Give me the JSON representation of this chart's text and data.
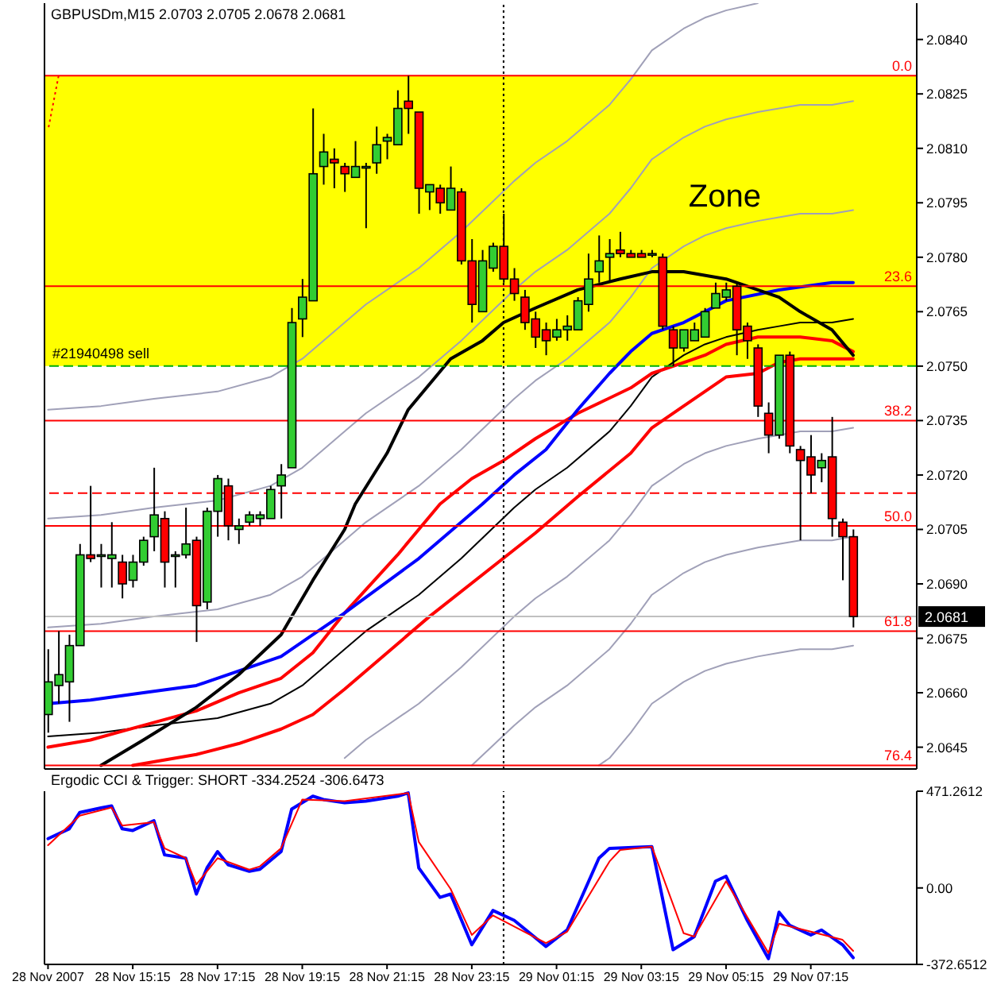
{
  "chart_data": [
    {
      "type": "candlestick",
      "title": "GBPUSDm,M15 2.0703 2.0705 2.0678 2.0681",
      "color": "#000000",
      "x": [
        "2007-11-28T13:15",
        "2007-11-28T13:30",
        "2007-11-28T13:45",
        "2007-11-28T14:00",
        "2007-11-28T14:15",
        "2007-11-28T14:30",
        "2007-11-28T14:45",
        "2007-11-28T15:00",
        "2007-11-28T15:15",
        "2007-11-28T15:30",
        "2007-11-28T15:45",
        "2007-11-28T16:00",
        "2007-11-28T16:15",
        "2007-11-28T16:30",
        "2007-11-28T16:45",
        "2007-11-28T17:00",
        "2007-11-28T17:15",
        "2007-11-28T17:30",
        "2007-11-28T17:45",
        "2007-11-28T18:00",
        "2007-11-28T18:15",
        "2007-11-28T18:30",
        "2007-11-28T18:45",
        "2007-11-28T19:00",
        "2007-11-28T19:15",
        "2007-11-28T19:30",
        "2007-11-28T19:45",
        "2007-11-28T20:00",
        "2007-11-28T20:15",
        "2007-11-28T20:30",
        "2007-11-28T20:45",
        "2007-11-28T21:00",
        "2007-11-28T21:15",
        "2007-11-28T21:30",
        "2007-11-28T21:45",
        "2007-11-28T22:00",
        "2007-11-28T22:15",
        "2007-11-28T22:30",
        "2007-11-28T22:45",
        "2007-11-28T23:00",
        "2007-11-28T23:15",
        "2007-11-28T23:30",
        "2007-11-28T23:45",
        "2007-11-29T00:00",
        "2007-11-29T00:15",
        "2007-11-29T00:30",
        "2007-11-29T00:45",
        "2007-11-29T01:00",
        "2007-11-29T01:15",
        "2007-11-29T01:30",
        "2007-11-29T01:45",
        "2007-11-29T02:00",
        "2007-11-29T02:15",
        "2007-11-29T02:30",
        "2007-11-29T02:45",
        "2007-11-29T03:00",
        "2007-11-29T03:15",
        "2007-11-29T03:30",
        "2007-11-29T03:45",
        "2007-11-29T04:00",
        "2007-11-29T04:15",
        "2007-11-29T04:30",
        "2007-11-29T04:45",
        "2007-11-29T05:00",
        "2007-11-29T05:15",
        "2007-11-29T05:30",
        "2007-11-29T05:45",
        "2007-11-29T06:00",
        "2007-11-29T06:15",
        "2007-11-29T06:30",
        "2007-11-29T06:45",
        "2007-11-29T07:00",
        "2007-11-29T07:15",
        "2007-11-29T07:30",
        "2007-11-29T07:45",
        "2007-11-29T08:00",
        "2007-11-29T08:15"
      ],
      "ohlc": [
        [
          2.0654,
          2.0672,
          2.0649,
          2.0663
        ],
        [
          2.0662,
          2.0677,
          2.0657,
          2.0665
        ],
        [
          2.0663,
          2.0676,
          2.0652,
          2.0673
        ],
        [
          2.0673,
          2.0701,
          2.0673,
          2.0698
        ],
        [
          2.0698,
          2.0717,
          2.0696,
          2.0697
        ],
        [
          2.0698,
          2.0701,
          2.0689,
          2.0698
        ],
        [
          2.0697,
          2.0707,
          2.0689,
          2.0698
        ],
        [
          2.0696,
          2.0698,
          2.0686,
          2.069
        ],
        [
          2.0691,
          2.0698,
          2.0689,
          2.0696
        ],
        [
          2.0696,
          2.0703,
          2.0695,
          2.0702
        ],
        [
          2.0703,
          2.0722,
          2.0699,
          2.0709
        ],
        [
          2.0708,
          2.071,
          2.0689,
          2.0696
        ],
        [
          2.0698,
          2.0699,
          2.0689,
          2.0698
        ],
        [
          2.0698,
          2.0711,
          2.0697,
          2.0701
        ],
        [
          2.0702,
          2.0703,
          2.0674,
          2.0684
        ],
        [
          2.0685,
          2.0711,
          2.0683,
          2.071
        ],
        [
          2.071,
          2.072,
          2.0703,
          2.0719
        ],
        [
          2.0717,
          2.0719,
          2.0702,
          2.0706
        ],
        [
          2.0705,
          2.0708,
          2.0701,
          2.0706
        ],
        [
          2.0707,
          2.071,
          2.0706,
          2.0709
        ],
        [
          2.0708,
          2.071,
          2.0706,
          2.0709
        ],
        [
          2.0708,
          2.0717,
          2.0708,
          2.0716
        ],
        [
          2.0717,
          2.0723,
          2.0708,
          2.072
        ],
        [
          2.0722,
          2.0766,
          2.0722,
          2.0762
        ],
        [
          2.0763,
          2.0774,
          2.0758,
          2.0769
        ],
        [
          2.0768,
          2.0821,
          2.0768,
          2.0803
        ],
        [
          2.0805,
          2.0814,
          2.08,
          2.0809
        ],
        [
          2.0807,
          2.081,
          2.0799,
          2.0806
        ],
        [
          2.0805,
          2.0806,
          2.0798,
          2.0803
        ],
        [
          2.0802,
          2.0812,
          2.0802,
          2.0805
        ],
        [
          2.0805,
          2.0806,
          2.0788,
          2.0805
        ],
        [
          2.0806,
          2.0816,
          2.0803,
          2.0811
        ],
        [
          2.0812,
          2.0814,
          2.0807,
          2.0813
        ],
        [
          2.0811,
          2.0826,
          2.0811,
          2.0821
        ],
        [
          2.0823,
          2.083,
          2.0814,
          2.0821
        ],
        [
          2.082,
          2.082,
          2.0792,
          2.0799
        ],
        [
          2.0798,
          2.08,
          2.0793,
          2.08
        ],
        [
          2.0799,
          2.08,
          2.0792,
          2.0795
        ],
        [
          2.0793,
          2.0805,
          2.0793,
          2.0799
        ],
        [
          2.0798,
          2.0799,
          2.0778,
          2.0779
        ],
        [
          2.0779,
          2.0785,
          2.0762,
          2.0767
        ],
        [
          2.0765,
          2.0782,
          2.0765,
          2.0779
        ],
        [
          2.0777,
          2.0784,
          2.0776,
          2.0783
        ],
        [
          2.0783,
          2.0792,
          2.0773,
          2.0774
        ],
        [
          2.0774,
          2.0777,
          2.0768,
          2.077
        ],
        [
          2.0769,
          2.0771,
          2.076,
          2.0762
        ],
        [
          2.0763,
          2.0765,
          2.0755,
          2.0758
        ],
        [
          2.076,
          2.0762,
          2.0753,
          2.0757
        ],
        [
          2.0758,
          2.0763,
          2.0757,
          2.076
        ],
        [
          2.076,
          2.0764,
          2.0757,
          2.0761
        ],
        [
          2.076,
          2.0769,
          2.076,
          2.0768
        ],
        [
          2.0767,
          2.0781,
          2.0765,
          2.0774
        ],
        [
          2.0776,
          2.0786,
          2.0773,
          2.0779
        ],
        [
          2.078,
          2.0785,
          2.0773,
          2.0781
        ],
        [
          2.0782,
          2.0787,
          2.078,
          2.0781
        ],
        [
          2.0781,
          2.0782,
          2.078,
          2.078
        ],
        [
          2.0781,
          2.0782,
          2.078,
          2.078
        ],
        [
          2.0781,
          2.0782,
          2.078,
          2.0781
        ],
        [
          2.078,
          2.0781,
          2.076,
          2.0761
        ],
        [
          2.076,
          2.0761,
          2.075,
          2.0755
        ],
        [
          2.0755,
          2.076,
          2.0754,
          2.076
        ],
        [
          2.0757,
          2.0762,
          2.0757,
          2.076
        ],
        [
          2.0758,
          2.0766,
          2.0758,
          2.0765
        ],
        [
          2.0766,
          2.0773,
          2.0766,
          2.077
        ],
        [
          2.0769,
          2.0773,
          2.0768,
          2.0771
        ],
        [
          2.0772,
          2.0773,
          2.0753,
          2.076
        ],
        [
          2.0761,
          2.0762,
          2.0752,
          2.0757
        ],
        [
          2.0755,
          2.0756,
          2.0736,
          2.0739
        ],
        [
          2.0737,
          2.074,
          2.0726,
          2.0731
        ],
        [
          2.0731,
          2.0753,
          2.073,
          2.0753
        ],
        [
          2.0753,
          2.0754,
          2.0726,
          2.0728
        ],
        [
          2.0727,
          2.0728,
          2.0702,
          2.0724
        ],
        [
          2.0725,
          2.0731,
          2.0715,
          2.072
        ],
        [
          2.0722,
          2.0726,
          2.0718,
          2.0724
        ],
        [
          2.0725,
          2.0736,
          2.0703,
          2.0708
        ],
        [
          2.0707,
          2.0708,
          2.0691,
          2.0703
        ],
        [
          2.0703,
          2.0705,
          2.0678,
          2.0681
        ]
      ],
      "colors": [
        "#32cd32",
        "#32cd32",
        "#32cd32",
        "#32cd32",
        "#ff0000",
        "#32cd32",
        "#32cd32",
        "#ff0000",
        "#32cd32",
        "#32cd32",
        "#32cd32",
        "#ff0000",
        "#32cd32",
        "#32cd32",
        "#ff0000",
        "#32cd32",
        "#32cd32",
        "#ff0000",
        "#32cd32",
        "#32cd32",
        "#32cd32",
        "#32cd32",
        "#32cd32",
        "#32cd32",
        "#32cd32",
        "#32cd32",
        "#32cd32",
        "#ff0000",
        "#ff0000",
        "#32cd32",
        "#32cd32",
        "#32cd32",
        "#32cd32",
        "#32cd32",
        "#ff0000",
        "#ff0000",
        "#32cd32",
        "#ff0000",
        "#32cd32",
        "#ff0000",
        "#ff0000",
        "#32cd32",
        "#32cd32",
        "#ff0000",
        "#ff0000",
        "#ff0000",
        "#ff0000",
        "#ff0000",
        "#32cd32",
        "#32cd32",
        "#32cd32",
        "#32cd32",
        "#32cd32",
        "#32cd32",
        "#ff0000",
        "#ff0000",
        "#ff0000",
        "#32cd32",
        "#ff0000",
        "#ff0000",
        "#32cd32",
        "#32cd32",
        "#32cd32",
        "#32cd32",
        "#32cd32",
        "#ff0000",
        "#ff0000",
        "#ff0000",
        "#ff0000",
        "#32cd32",
        "#ff0000",
        "#ff0000",
        "#ff0000",
        "#32cd32",
        "#ff0000",
        "#ff0000",
        "#ff0000"
      ],
      "series": [
        {
          "type": "line",
          "color": "#a0a0b8",
          "x": [
            "2007-11-28T13:15",
            "2007-11-28T14:30",
            "2007-11-28T15:45",
            "2007-11-28T17:15",
            "2007-11-28T18:30",
            "2007-11-28T19:15",
            "2007-11-28T20:15",
            "2007-11-28T20:45",
            "2007-11-28T22:00",
            "2007-11-28T23:00",
            "2007-11-29T00:15",
            "2007-11-29T00:45",
            "2007-11-29T01:30",
            "2007-11-29T02:30",
            "2007-11-29T03:00",
            "2007-11-29T03:30",
            "2007-11-29T04:15",
            "2007-11-29T04:45",
            "2007-11-29T05:15",
            "2007-11-29T06:00"
          ],
          "values": [
            2.0738,
            2.0739,
            2.0741,
            2.0743,
            2.0747,
            2.0752,
            2.0762,
            2.0767,
            2.0777,
            2.0787,
            2.0801,
            2.0806,
            2.0812,
            2.0822,
            2.0829,
            2.0837,
            2.0843,
            2.0846,
            2.0848,
            2.085
          ]
        },
        {
          "type": "line",
          "color": "#a0a0b8",
          "x": [
            "2007-11-28T13:15",
            "2007-11-28T14:30",
            "2007-11-28T15:45",
            "2007-11-28T17:15",
            "2007-11-28T18:30",
            "2007-11-28T19:15",
            "2007-11-28T20:15",
            "2007-11-28T20:45",
            "2007-11-28T22:00",
            "2007-11-28T23:00",
            "2007-11-29T00:15",
            "2007-11-29T00:45",
            "2007-11-29T01:30",
            "2007-11-29T02:30",
            "2007-11-29T03:00",
            "2007-11-29T03:30",
            "2007-11-29T04:15",
            "2007-11-29T04:45",
            "2007-11-29T05:15",
            "2007-11-29T06:00",
            "2007-11-29T06:30",
            "2007-11-29T07:00",
            "2007-11-29T07:45",
            "2007-11-29T08:15"
          ],
          "values": [
            2.0708,
            2.0709,
            2.0711,
            2.0713,
            2.0717,
            2.0722,
            2.0732,
            2.0737,
            2.0747,
            2.0757,
            2.0771,
            2.0776,
            2.0782,
            2.0792,
            2.0799,
            2.0807,
            2.0813,
            2.0816,
            2.0818,
            2.082,
            2.0821,
            2.0822,
            2.0822,
            2.0823
          ]
        },
        {
          "type": "line",
          "color": "#a0a0b8",
          "x": [
            "2007-11-28T13:15",
            "2007-11-28T14:30",
            "2007-11-28T15:45",
            "2007-11-28T17:15",
            "2007-11-28T18:30",
            "2007-11-28T19:15",
            "2007-11-28T20:15",
            "2007-11-28T20:45",
            "2007-11-28T22:00",
            "2007-11-28T23:00",
            "2007-11-29T00:15",
            "2007-11-29T00:45",
            "2007-11-29T01:30",
            "2007-11-29T02:30",
            "2007-11-29T03:00",
            "2007-11-29T03:30",
            "2007-11-29T04:15",
            "2007-11-29T04:45",
            "2007-11-29T05:15",
            "2007-11-29T06:00",
            "2007-11-29T06:30",
            "2007-11-29T07:00",
            "2007-11-29T07:45",
            "2007-11-29T08:15"
          ],
          "values": [
            2.0678,
            2.0679,
            2.0681,
            2.0683,
            2.0687,
            2.0692,
            2.0702,
            2.0707,
            2.0717,
            2.0727,
            2.0741,
            2.0746,
            2.0752,
            2.0762,
            2.0769,
            2.0777,
            2.0783,
            2.0786,
            2.0788,
            2.079,
            2.0791,
            2.0792,
            2.0792,
            2.0793
          ]
        },
        {
          "type": "line",
          "color": "#000000",
          "x": [
            "2007-11-28T13:15",
            "2007-11-28T14:30",
            "2007-11-28T15:45",
            "2007-11-28T17:15",
            "2007-11-28T18:30",
            "2007-11-28T19:15",
            "2007-11-28T20:15",
            "2007-11-28T20:45",
            "2007-11-28T22:00",
            "2007-11-28T23:00",
            "2007-11-29T00:15",
            "2007-11-29T00:45",
            "2007-11-29T01:30",
            "2007-11-29T02:30",
            "2007-11-29T03:00",
            "2007-11-29T03:30",
            "2007-11-29T04:15",
            "2007-11-29T04:45",
            "2007-11-29T05:15",
            "2007-11-29T06:00",
            "2007-11-29T06:30",
            "2007-11-29T07:00",
            "2007-11-29T07:45",
            "2007-11-29T08:15"
          ],
          "values": [
            2.0648,
            2.0649,
            2.0651,
            2.0653,
            2.0657,
            2.0662,
            2.0672,
            2.0677,
            2.0687,
            2.0697,
            2.0711,
            2.0716,
            2.0722,
            2.0732,
            2.0739,
            2.0747,
            2.0753,
            2.0756,
            2.0758,
            2.076,
            2.0761,
            2.0762,
            2.0762,
            2.0763
          ]
        },
        {
          "type": "line",
          "color": "#a0a0b8",
          "x": [
            "2007-11-28T20:15",
            "2007-11-28T20:45",
            "2007-11-28T22:00",
            "2007-11-28T23:00",
            "2007-11-29T00:15",
            "2007-11-29T00:45",
            "2007-11-29T01:30",
            "2007-11-29T02:30",
            "2007-11-29T03:00",
            "2007-11-29T03:30",
            "2007-11-29T04:15",
            "2007-11-29T04:45",
            "2007-11-29T05:15",
            "2007-11-29T06:00",
            "2007-11-29T06:30",
            "2007-11-29T07:00",
            "2007-11-29T07:45",
            "2007-11-29T08:15"
          ],
          "values": [
            2.0642,
            2.0647,
            2.0657,
            2.0667,
            2.0681,
            2.0686,
            2.0692,
            2.0702,
            2.0709,
            2.0717,
            2.0723,
            2.0726,
            2.0728,
            2.073,
            2.0731,
            2.0732,
            2.0732,
            2.0733
          ]
        },
        {
          "type": "line",
          "color": "#a0a0b8",
          "x": [
            "2007-11-28T23:15",
            "2007-11-29T00:15",
            "2007-11-29T00:45",
            "2007-11-29T01:30",
            "2007-11-29T02:30",
            "2007-11-29T03:00",
            "2007-11-29T03:30",
            "2007-11-29T04:15",
            "2007-11-29T04:45",
            "2007-11-29T05:15",
            "2007-11-29T06:00",
            "2007-11-29T06:30",
            "2007-11-29T07:00",
            "2007-11-29T07:45",
            "2007-11-29T08:15"
          ],
          "values": [
            2.064,
            2.0651,
            2.0656,
            2.0662,
            2.0672,
            2.0679,
            2.0687,
            2.0693,
            2.0696,
            2.0698,
            2.07,
            2.0701,
            2.0702,
            2.0702,
            2.0703
          ]
        },
        {
          "type": "line",
          "color": "#a0a0b8",
          "x": [
            "2007-11-29T02:15",
            "2007-11-29T02:30",
            "2007-11-29T03:00",
            "2007-11-29T03:30",
            "2007-11-29T04:15",
            "2007-11-29T04:45",
            "2007-11-29T05:15",
            "2007-11-29T06:00",
            "2007-11-29T06:30",
            "2007-11-29T07:00",
            "2007-11-29T07:45",
            "2007-11-29T08:15"
          ],
          "values": [
            2.064,
            2.0642,
            2.0649,
            2.0657,
            2.0663,
            2.0666,
            2.0668,
            2.067,
            2.0671,
            2.0672,
            2.0672,
            2.0673
          ]
        },
        {
          "type": "line",
          "color": "#ff0000",
          "x": [
            "2007-11-28T15:15",
            "2007-11-28T16:45",
            "2007-11-28T17:45",
            "2007-11-28T18:45",
            "2007-11-28T19:30",
            "2007-11-28T20:15",
            "2007-11-28T22:15",
            "2007-11-29T00:45",
            "2007-11-29T01:45",
            "2007-11-29T03:00",
            "2007-11-29T03:30",
            "2007-11-29T04:15",
            "2007-11-29T04:45",
            "2007-11-29T05:15",
            "2007-11-29T06:00",
            "2007-11-29T06:30",
            "2007-11-29T07:00",
            "2007-11-29T07:45",
            "2007-11-29T08:15"
          ],
          "values": [
            2.064,
            2.0643,
            2.0646,
            2.065,
            2.0654,
            2.0661,
            2.0681,
            2.0704,
            2.0714,
            2.0726,
            2.0733,
            2.0739,
            2.0743,
            2.0747,
            2.0748,
            2.0751,
            2.0752,
            2.0752,
            2.0752
          ]
        },
        {
          "type": "line",
          "color": "#ff0000",
          "x": [
            "2007-11-28T13:15",
            "2007-11-28T14:15",
            "2007-11-28T15:30",
            "2007-11-28T16:45",
            "2007-11-28T17:45",
            "2007-11-28T18:45",
            "2007-11-28T19:30",
            "2007-11-28T20:15",
            "2007-11-28T21:30",
            "2007-11-28T22:30",
            "2007-11-28T23:15",
            "2007-11-29T00:00",
            "2007-11-29T00:45",
            "2007-11-29T01:45",
            "2007-11-29T03:00",
            "2007-11-29T03:30",
            "2007-11-29T04:15",
            "2007-11-29T04:45",
            "2007-11-29T05:15",
            "2007-11-29T06:00",
            "2007-11-29T06:30",
            "2007-11-29T07:00",
            "2007-11-29T07:45",
            "2007-11-29T08:15"
          ],
          "values": [
            2.0645,
            2.0647,
            2.0651,
            2.0655,
            2.066,
            2.0664,
            2.0671,
            2.0682,
            2.0698,
            2.0712,
            2.0719,
            2.0724,
            2.073,
            2.0737,
            2.0744,
            2.0748,
            2.0751,
            2.0753,
            2.0756,
            2.0758,
            2.0758,
            2.0758,
            2.0757,
            2.0754
          ]
        },
        {
          "type": "line",
          "color": "#0000ff",
          "x": [
            "2007-11-28T13:15",
            "2007-11-28T14:15",
            "2007-11-28T15:30",
            "2007-11-28T16:45",
            "2007-11-28T17:45",
            "2007-11-28T18:45",
            "2007-11-28T19:30",
            "2007-11-28T20:15",
            "2007-11-28T22:00",
            "2007-11-28T23:30",
            "2007-11-29T00:15",
            "2007-11-29T01:00",
            "2007-11-29T01:45",
            "2007-11-29T02:30",
            "2007-11-29T03:00",
            "2007-11-29T03:30",
            "2007-11-29T04:15",
            "2007-11-29T05:15",
            "2007-11-29T06:30",
            "2007-11-29T07:45",
            "2007-11-29T08:15"
          ],
          "values": [
            2.0657,
            2.0658,
            2.066,
            2.0662,
            2.0666,
            2.067,
            2.0676,
            2.0682,
            2.0697,
            2.0712,
            2.072,
            2.0727,
            2.0738,
            2.0748,
            2.0754,
            2.0759,
            2.0762,
            2.0768,
            2.0771,
            2.0773,
            2.0773
          ]
        },
        {
          "type": "line",
          "color": "#000000",
          "x": [
            "2007-11-28T14:30",
            "2007-11-28T15:30",
            "2007-11-28T16:45",
            "2007-11-28T17:45",
            "2007-11-28T18:45",
            "2007-11-28T19:30",
            "2007-11-28T20:15",
            "2007-11-28T20:30",
            "2007-11-28T21:15",
            "2007-11-28T21:45",
            "2007-11-28T22:15",
            "2007-11-28T22:45",
            "2007-11-28T23:30",
            "2007-11-29T00:00",
            "2007-11-29T00:45",
            "2007-11-29T01:45",
            "2007-11-29T02:45",
            "2007-11-29T03:30",
            "2007-11-29T04:15",
            "2007-11-29T05:15",
            "2007-11-29T06:00",
            "2007-11-29T06:30",
            "2007-11-29T07:00",
            "2007-11-29T07:45",
            "2007-11-29T08:15"
          ],
          "values": [
            2.064,
            2.0647,
            2.0656,
            2.0665,
            2.0676,
            2.0691,
            2.0705,
            2.0712,
            2.0726,
            2.0738,
            2.0745,
            2.0752,
            2.0757,
            2.0762,
            2.0766,
            2.0771,
            2.0774,
            2.0776,
            2.0776,
            2.0774,
            2.0771,
            2.0769,
            2.0765,
            2.076,
            2.0753
          ]
        },
        {
          "type": "line",
          "color": "#ff0000",
          "line_style": "dotted",
          "x": [
            "2007-11-28T13:30",
            "2007-11-28T13:15"
          ],
          "values": [
            2.083,
            2.0815
          ]
        }
      ],
      "xlim": [
        "2007-11-28T13:10",
        "2007-11-29T09:45"
      ],
      "ylim": [
        2.0639,
        2.085
      ],
      "yticks": [
        {
          "value": 2.0645,
          "label": "2.0645"
        },
        {
          "value": 2.066,
          "label": "2.0660"
        },
        {
          "value": 2.0675,
          "label": "2.0675"
        },
        {
          "value": 2.069,
          "label": "2.0690"
        },
        {
          "value": 2.0705,
          "label": "2.0705"
        },
        {
          "value": 2.072,
          "label": "2.0720"
        },
        {
          "value": 2.0735,
          "label": "2.0735"
        },
        {
          "value": 2.075,
          "label": "2.0750"
        },
        {
          "value": 2.0765,
          "label": "2.0765"
        },
        {
          "value": 2.078,
          "label": "2.0780"
        },
        {
          "value": 2.0795,
          "label": "2.0795"
        },
        {
          "value": 2.081,
          "label": "2.0810"
        },
        {
          "value": 2.0825,
          "label": "2.0825"
        },
        {
          "value": 2.084,
          "label": "2.0840"
        }
      ],
      "tick_labels": "y",
      "marker": "none",
      "bands": [
        {
          "axis": "y",
          "from": 2.075,
          "to": 2.083,
          "label": "Zone",
          "color": "#ffff00"
        }
      ],
      "ref_lines": [
        {
          "axis": "y",
          "value": 2.083,
          "color": "#ff0000"
        },
        {
          "axis": "y",
          "value": 2.0772,
          "color": "#ff0000"
        },
        {
          "axis": "y",
          "value": 2.0735,
          "color": "#ff0000"
        },
        {
          "axis": "y",
          "value": 2.0706,
          "color": "#ff0000"
        },
        {
          "axis": "y",
          "value": 2.0677,
          "color": "#ff0000"
        },
        {
          "axis": "y",
          "value": 2.064,
          "color": "#ff0000"
        },
        {
          "axis": "y",
          "value": 2.075,
          "label": "#21940498 sell",
          "color": "#00b000",
          "line_style": "dashed"
        },
        {
          "axis": "y",
          "value": 2.0715,
          "color": "#ff0000",
          "line_style": "dashed"
        },
        {
          "axis": "y",
          "value": 2.0681,
          "label": "2.0681",
          "color": "#c0c0c0"
        },
        {
          "axis": "x",
          "value": "2007-11-29T00:00",
          "color": "#000000",
          "line_style": "dotted"
        }
      ],
      "annotations": [
        {
          "text": "0.0",
          "x": "2007-11-29T09:45",
          "y": 2.083
        },
        {
          "text": "23.6",
          "x": "2007-11-29T09:45",
          "y": 2.0772
        },
        {
          "text": "38.2",
          "x": "2007-11-29T09:45",
          "y": 2.0735
        },
        {
          "text": "50.0",
          "x": "2007-11-29T09:45",
          "y": 2.0706
        },
        {
          "text": "61.8",
          "x": "2007-11-29T09:45",
          "y": 2.0677
        },
        {
          "text": "76.4",
          "x": "2007-11-29T09:45",
          "y": 2.064
        }
      ]
    },
    {
      "type": "line",
      "title": "Ergodic CCI & Trigger: SHORT -334.2524 -306.6473",
      "series": [
        {
          "color": "#0000ff",
          "x": [
            "2007-11-28T13:15",
            "2007-11-28T13:45",
            "2007-11-28T14:00",
            "2007-11-28T14:30",
            "2007-11-28T14:45",
            "2007-11-28T15:00",
            "2007-11-28T15:15",
            "2007-11-28T15:45",
            "2007-11-28T16:00",
            "2007-11-28T16:30",
            "2007-11-28T16:45",
            "2007-11-28T17:00",
            "2007-11-28T17:15",
            "2007-11-28T17:30",
            "2007-11-28T18:00",
            "2007-11-28T18:15",
            "2007-11-28T18:45",
            "2007-11-28T19:00",
            "2007-11-28T19:30",
            "2007-11-28T19:45",
            "2007-11-28T20:15",
            "2007-11-28T20:45",
            "2007-11-28T21:30",
            "2007-11-28T21:45",
            "2007-11-28T22:00",
            "2007-11-28T22:30",
            "2007-11-28T22:45",
            "2007-11-28T23:15",
            "2007-11-28T23:45",
            "2007-11-29T00:15",
            "2007-11-29T01:00",
            "2007-11-29T01:30",
            "2007-11-29T02:15",
            "2007-11-29T02:30",
            "2007-11-29T03:30",
            "2007-11-29T04:00",
            "2007-11-29T04:30",
            "2007-11-29T05:00",
            "2007-11-29T05:15",
            "2007-11-29T05:45",
            "2007-11-29T06:15",
            "2007-11-29T06:30",
            "2007-11-29T06:45",
            "2007-11-29T07:15",
            "2007-11-29T07:30",
            "2007-11-29T08:00",
            "2007-11-29T08:15"
          ],
          "values": [
            240,
            288,
            368,
            390,
            400,
            288,
            280,
            328,
            161,
            145,
            -30,
            97,
            177,
            113,
            81,
            91,
            177,
            384,
            447,
            431,
            415,
            423,
            447,
            463,
            97,
            -46,
            -30,
            -277,
            -110,
            -158,
            -285,
            -205,
            145,
            193,
            201,
            -301,
            -237,
            33,
            57,
            -158,
            -345,
            -118,
            -182,
            -229,
            -205,
            -277,
            -340
          ]
        },
        {
          "color": "#ff0000",
          "x": [
            "2007-11-28T13:15",
            "2007-11-28T14:00",
            "2007-11-28T14:45",
            "2007-11-28T15:00",
            "2007-11-28T15:45",
            "2007-11-28T16:00",
            "2007-11-28T16:30",
            "2007-11-28T16:45",
            "2007-11-28T17:15",
            "2007-11-28T18:00",
            "2007-11-28T18:15",
            "2007-11-28T18:45",
            "2007-11-28T19:15",
            "2007-11-28T20:15",
            "2007-11-28T21:45",
            "2007-11-28T22:00",
            "2007-11-28T22:45",
            "2007-11-28T23:15",
            "2007-11-28T23:45",
            "2007-11-29T01:00",
            "2007-11-29T01:30",
            "2007-11-29T02:30",
            "2007-11-29T02:45",
            "2007-11-29T03:30",
            "2007-11-29T04:15",
            "2007-11-29T04:30",
            "2007-11-29T05:15",
            "2007-11-29T06:15",
            "2007-11-29T06:30",
            "2007-11-29T07:15",
            "2007-11-29T08:00",
            "2007-11-29T08:15"
          ],
          "values": [
            208,
            352,
            392,
            304,
            320,
            193,
            145,
            17,
            145,
            89,
            105,
            193,
            431,
            423,
            463,
            224,
            -5,
            -229,
            -134,
            -269,
            -213,
            129,
            185,
            201,
            -221,
            -237,
            33,
            -317,
            -174,
            -213,
            -253,
            -307
          ]
        }
      ],
      "xlim": [
        "2007-11-28T13:10",
        "2007-11-29T09:45"
      ],
      "xticks": [
        {
          "value": "2007-11-28T13:15",
          "label": "28 Nov 2007"
        },
        {
          "value": "2007-11-28T15:15",
          "label": "28 Nov 15:15"
        },
        {
          "value": "2007-11-28T17:15",
          "label": "28 Nov 17:15"
        },
        {
          "value": "2007-11-28T19:15",
          "label": "28 Nov 19:15"
        },
        {
          "value": "2007-11-28T21:15",
          "label": "28 Nov 21:15"
        },
        {
          "value": "2007-11-28T23:15",
          "label": "28 Nov 23:15"
        },
        {
          "value": "2007-11-29T01:15",
          "label": "29 Nov 01:15"
        },
        {
          "value": "2007-11-29T03:15",
          "label": "29 Nov 03:15"
        },
        {
          "value": "2007-11-29T05:15",
          "label": "29 Nov 05:15"
        },
        {
          "value": "2007-11-29T07:15",
          "label": "29 Nov 07:15"
        }
      ],
      "ylim": [
        -372.6512,
        471.2612
      ],
      "yticks": [
        -372.6512,
        {
          "value": 0,
          "label": "0.00"
        },
        471.2612
      ],
      "marker": "none",
      "ref_lines": [
        {
          "axis": "x",
          "value": "2007-11-29T00:00",
          "color": "#000000",
          "line_style": "dotted"
        }
      ]
    }
  ]
}
